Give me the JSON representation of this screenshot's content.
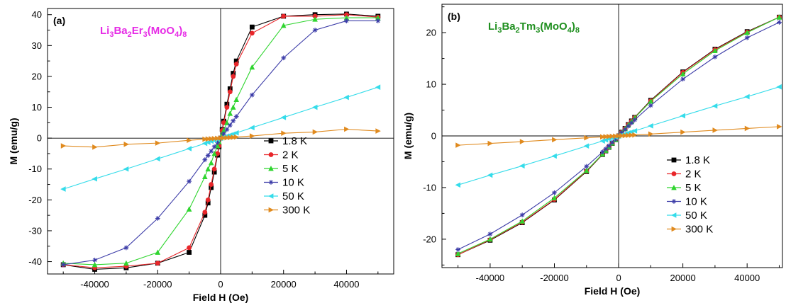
{
  "colors": {
    "1.8 K": "#000000",
    "2 K": "#e8262a",
    "5 K": "#2fd52f",
    "10 K": "#3c3ca8",
    "50 K": "#35dcea",
    "300 K": "#e08a1e",
    "compound_a": "#e62be6",
    "compound_b": "#1f8f1f"
  },
  "chart_data": [
    {
      "type": "line",
      "panel_label": "(a)",
      "compound": {
        "main": "Li",
        "parts": [
          [
            "Li",
            "3"
          ],
          [
            "Ba",
            "2"
          ],
          [
            "Er",
            "3"
          ],
          [
            "(MoO",
            "4"
          ],
          [
            ")",
            "8"
          ]
        ]
      },
      "compound_parts_text": [
        "Li",
        "3",
        "Ba",
        "2",
        "Er",
        "3",
        "(MoO",
        "4",
        ")",
        "8"
      ],
      "xlabel": "Field H (Oe)",
      "ylabel": "M (emu/g)",
      "xlim": [
        -55000,
        55000
      ],
      "ylim": [
        -44,
        42
      ],
      "xticks": [
        -40000,
        -20000,
        0,
        20000,
        40000
      ],
      "yticks": [
        -40,
        -30,
        -20,
        -10,
        0,
        10,
        20,
        30,
        40
      ],
      "legend": "right",
      "series": [
        {
          "name": "1.8 K",
          "marker": "square",
          "x": [
            -50000,
            -40000,
            -30000,
            -20000,
            -10000,
            -5000,
            -4000,
            -3000,
            -2000,
            -1000,
            -500,
            0,
            500,
            1000,
            2000,
            3000,
            4000,
            5000,
            10000,
            20000,
            30000,
            40000,
            50000
          ],
          "y": [
            -41,
            -42.5,
            -42,
            -40.5,
            -37,
            -25,
            -21,
            -16,
            -11,
            -5.5,
            -2.8,
            0,
            2.8,
            5.5,
            11,
            16,
            21,
            25,
            36,
            39.5,
            40,
            40.2,
            39.5
          ]
        },
        {
          "name": "2 K",
          "marker": "circle",
          "x": [
            -50000,
            -40000,
            -30000,
            -20000,
            -10000,
            -5000,
            -4000,
            -3000,
            -2000,
            -1000,
            -500,
            0,
            500,
            1000,
            2000,
            3000,
            4000,
            5000,
            10000,
            20000,
            30000,
            40000,
            50000
          ],
          "y": [
            -41,
            -42,
            -41.5,
            -40.5,
            -35.5,
            -24,
            -20,
            -15,
            -10,
            -5,
            -2.5,
            0,
            2.5,
            5,
            10,
            15,
            20,
            24,
            34,
            39.5,
            39.5,
            40,
            39.2
          ]
        },
        {
          "name": "5 K",
          "marker": "triangle-up",
          "x": [
            -50000,
            -40000,
            -30000,
            -20000,
            -10000,
            -5000,
            -4000,
            -3000,
            -2000,
            -1000,
            -500,
            0,
            500,
            1000,
            2000,
            3000,
            4000,
            5000,
            10000,
            20000,
            30000,
            40000,
            50000
          ],
          "y": [
            -40.5,
            -41,
            -40.5,
            -37,
            -23,
            -12.5,
            -10,
            -8,
            -5,
            -2.5,
            -1.2,
            0,
            1.2,
            2.5,
            5,
            8,
            10,
            12.5,
            23,
            36.5,
            38.5,
            39,
            39
          ]
        },
        {
          "name": "10 K",
          "marker": "star",
          "x": [
            -50000,
            -40000,
            -30000,
            -20000,
            -10000,
            -5000,
            -4000,
            -3000,
            -2000,
            -1000,
            0,
            1000,
            2000,
            3000,
            4000,
            5000,
            10000,
            20000,
            30000,
            40000,
            50000
          ],
          "y": [
            -41,
            -39.5,
            -35.5,
            -26,
            -14,
            -7,
            -5.6,
            -4.2,
            -2.8,
            -1.4,
            0,
            1.4,
            2.8,
            4.2,
            5.6,
            7,
            14,
            26,
            35,
            38,
            38
          ]
        },
        {
          "name": "50 K",
          "marker": "triangle-left",
          "x": [
            -50000,
            -40000,
            -30000,
            -20000,
            -10000,
            -5000,
            -4000,
            -3000,
            -2000,
            -1000,
            0,
            1000,
            2000,
            3000,
            4000,
            5000,
            10000,
            20000,
            30000,
            40000,
            50000
          ],
          "y": [
            -16.5,
            -13.2,
            -10,
            -6.7,
            -3.4,
            -1.7,
            -1.35,
            -1,
            -0.7,
            -0.35,
            0,
            0.35,
            0.7,
            1,
            1.35,
            1.7,
            3.4,
            6.7,
            10,
            13.2,
            16.5
          ]
        },
        {
          "name": "300 K",
          "marker": "triangle-right",
          "x": [
            -50000,
            -40000,
            -30000,
            -20000,
            -10000,
            -5000,
            -4000,
            -3000,
            -2000,
            -1000,
            0,
            1000,
            2000,
            3000,
            4000,
            5000,
            10000,
            20000,
            30000,
            40000,
            50000
          ],
          "y": [
            -2.5,
            -2.9,
            -2,
            -1.6,
            -0.7,
            -0.35,
            -0.28,
            -0.2,
            -0.14,
            -0.07,
            0,
            0.07,
            0.14,
            0.2,
            0.28,
            0.35,
            0.7,
            1.6,
            2,
            2.9,
            2.3
          ]
        }
      ]
    },
    {
      "type": "line",
      "panel_label": "(b)",
      "compound_parts_text": [
        "Li",
        "3",
        "Ba",
        "2",
        "Tm",
        "3",
        "(MoO",
        "4",
        ")",
        "8"
      ],
      "xlabel": "Field H (Oe)",
      "ylabel": "M (emu/g)",
      "xlim": [
        -55000,
        51000
      ],
      "ylim": [
        -25.5,
        25.5
      ],
      "xticks": [
        -40000,
        -20000,
        0,
        20000,
        40000
      ],
      "yticks": [
        -20,
        -10,
        0,
        10,
        20
      ],
      "legend": "right",
      "series": [
        {
          "name": "1.8 K",
          "marker": "square",
          "x": [
            -50000,
            -40000,
            -30000,
            -20000,
            -10000,
            -5000,
            -4000,
            -3000,
            -2000,
            -1000,
            0,
            1000,
            2000,
            3000,
            4000,
            5000,
            10000,
            20000,
            30000,
            40000,
            50000
          ],
          "y": [
            -23,
            -20.2,
            -16.8,
            -12.4,
            -6.9,
            -3.6,
            -2.9,
            -2.2,
            -1.45,
            -0.73,
            0,
            0.73,
            1.45,
            2.2,
            2.9,
            3.6,
            6.9,
            12.4,
            16.8,
            20.2,
            23
          ]
        },
        {
          "name": "2 K",
          "marker": "circle",
          "x": [
            -50000,
            -40000,
            -30000,
            -20000,
            -10000,
            -5000,
            -4000,
            -3000,
            -2000,
            -1000,
            0,
            1000,
            2000,
            3000,
            4000,
            5000,
            10000,
            20000,
            30000,
            40000,
            50000
          ],
          "y": [
            -23,
            -20.1,
            -16.7,
            -12.3,
            -6.8,
            -3.55,
            -2.85,
            -2.15,
            -1.43,
            -0.72,
            0,
            0.72,
            1.43,
            2.15,
            2.85,
            3.55,
            6.8,
            12.3,
            16.7,
            20.1,
            23
          ]
        },
        {
          "name": "5 K",
          "marker": "triangle-up",
          "x": [
            -50000,
            -40000,
            -30000,
            -20000,
            -10000,
            -5000,
            -4000,
            -3000,
            -2000,
            -1000,
            0,
            1000,
            2000,
            3000,
            4000,
            5000,
            10000,
            20000,
            30000,
            40000,
            50000
          ],
          "y": [
            -22.8,
            -20,
            -16.5,
            -12,
            -6.7,
            -3.5,
            -2.8,
            -2.1,
            -1.4,
            -0.7,
            0,
            0.7,
            1.4,
            2.1,
            2.8,
            3.5,
            6.7,
            12,
            16.5,
            20,
            23
          ]
        },
        {
          "name": "10 K",
          "marker": "star",
          "x": [
            -50000,
            -40000,
            -30000,
            -20000,
            -10000,
            -5000,
            -4000,
            -3000,
            -2000,
            -1000,
            0,
            1000,
            2000,
            3000,
            4000,
            5000,
            10000,
            20000,
            30000,
            40000,
            50000
          ],
          "y": [
            -22,
            -19,
            -15.3,
            -11,
            -5.9,
            -3.1,
            -2.5,
            -1.9,
            -1.25,
            -0.63,
            0,
            0.63,
            1.25,
            1.9,
            2.5,
            3.1,
            5.9,
            11,
            15.3,
            19,
            22
          ]
        },
        {
          "name": "50 K",
          "marker": "triangle-left",
          "x": [
            -50000,
            -40000,
            -30000,
            -20000,
            -10000,
            -5000,
            -4000,
            -3000,
            -2000,
            -1000,
            0,
            1000,
            2000,
            3000,
            4000,
            5000,
            10000,
            20000,
            30000,
            40000,
            50000
          ],
          "y": [
            -9.5,
            -7.6,
            -5.8,
            -3.9,
            -1.95,
            -0.98,
            -0.78,
            -0.59,
            -0.39,
            -0.2,
            0,
            0.2,
            0.39,
            0.59,
            0.78,
            0.98,
            1.95,
            3.9,
            5.8,
            7.6,
            9.5
          ]
        },
        {
          "name": "300 K",
          "marker": "triangle-right",
          "x": [
            -50000,
            -40000,
            -30000,
            -20000,
            -10000,
            -5000,
            -4000,
            -3000,
            -2000,
            -1000,
            0,
            1000,
            2000,
            3000,
            4000,
            5000,
            10000,
            20000,
            30000,
            40000,
            50000
          ],
          "y": [
            -1.8,
            -1.45,
            -1.1,
            -0.73,
            -0.37,
            -0.18,
            -0.15,
            -0.11,
            -0.07,
            -0.04,
            0,
            0.04,
            0.07,
            0.11,
            0.15,
            0.18,
            0.37,
            0.73,
            1.1,
            1.45,
            1.8
          ]
        }
      ]
    }
  ]
}
